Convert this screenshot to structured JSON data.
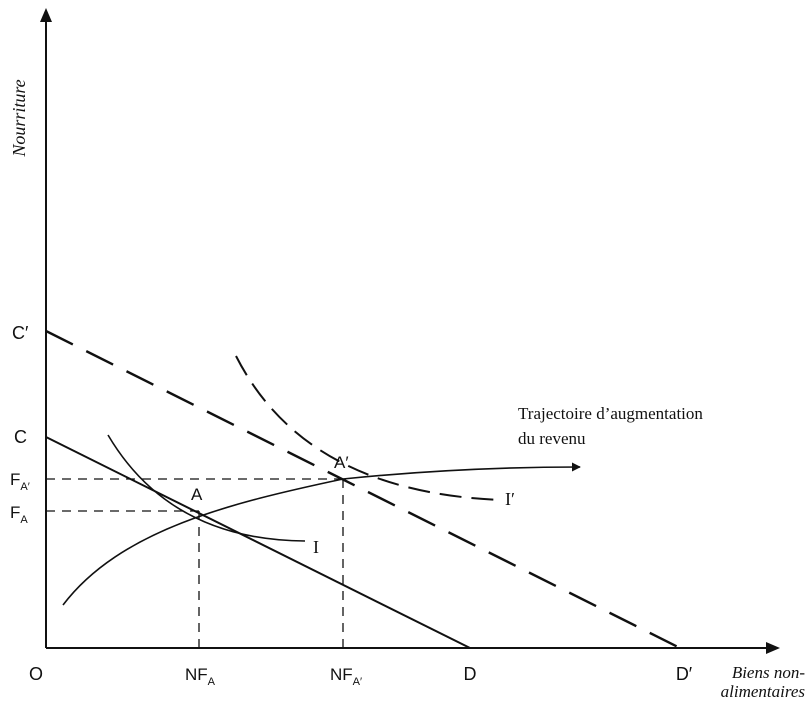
{
  "axes": {
    "y_label": "Nourriture",
    "x_label_line1": "Biens non-",
    "x_label_line2": "alimentaires",
    "origin": "O"
  },
  "points": {
    "C": "C",
    "C_prime": "C′",
    "D": "D",
    "D_prime": "D′",
    "A": "A",
    "A_prime": "A′"
  },
  "ticks": {
    "F_A": {
      "base": "F",
      "sub": "A"
    },
    "F_A_prime": {
      "base": "F",
      "sub": "A′"
    },
    "NF_A": {
      "base": "NF",
      "sub": "A"
    },
    "NF_A_prime": {
      "base": "NF",
      "sub": "A′"
    }
  },
  "curves": {
    "I": "I",
    "I_prime": "I′"
  },
  "path_label": {
    "line1": "Trajectoire d’augmentation",
    "line2": "du revenu"
  }
}
